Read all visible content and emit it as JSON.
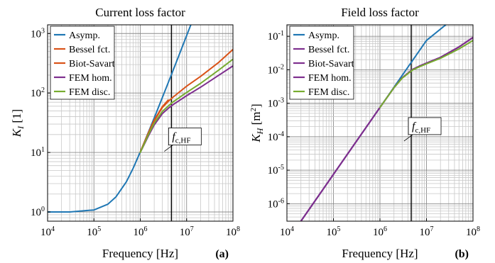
{
  "chart_data": [
    {
      "type": "line",
      "title": "Current loss factor",
      "xlabel": "Frequency [Hz]",
      "ylabel_main": "K",
      "ylabel_sub": "I",
      "ylabel_unit": "[1]",
      "panel_label": "(a)",
      "x_scale": "log",
      "y_scale": "log",
      "xlim": [
        10000,
        100000000
      ],
      "ylim": [
        0.7,
        1400
      ],
      "x_ticks": [
        {
          "v": 10000,
          "base": "10",
          "exp": "4"
        },
        {
          "v": 100000,
          "base": "10",
          "exp": "5"
        },
        {
          "v": 1000000,
          "base": "10",
          "exp": "6"
        },
        {
          "v": 10000000,
          "base": "10",
          "exp": "7"
        },
        {
          "v": 100000000,
          "base": "10",
          "exp": "8"
        }
      ],
      "y_ticks": [
        {
          "v": 1,
          "base": "10",
          "exp": "0"
        },
        {
          "v": 10,
          "base": "10",
          "exp": "1"
        },
        {
          "v": 100,
          "base": "10",
          "exp": "2"
        },
        {
          "v": 1000,
          "base": "10",
          "exp": "3"
        }
      ],
      "grid": true,
      "legend_position": "top-left",
      "vline": {
        "x": 4700000,
        "label_main": "f",
        "label_sub": "c,HF",
        "label_x": 3300000,
        "label_y": 13
      },
      "series": [
        {
          "name": "Asymp.",
          "color": "#1f77b4",
          "x": [
            10000,
            30000,
            100000,
            200000,
            300000,
            500000,
            700000,
            1000000,
            1500000,
            2000000,
            3000000,
            5000000,
            7000000,
            10000000,
            14000000
          ],
          "y": [
            1.0,
            1.0,
            1.08,
            1.35,
            1.8,
            3.2,
            5.4,
            10.2,
            22,
            38,
            84,
            230,
            450,
            920,
            1800
          ]
        },
        {
          "name": "Bessel fct.",
          "color": "#d95319",
          "x": [
            1000000,
            1500000,
            2000000,
            3000000,
            4000000,
            5000000,
            7000000,
            10000000,
            20000000,
            50000000,
            100000000
          ],
          "y": [
            10.2,
            21,
            34,
            57,
            72,
            84,
            104,
            130,
            190,
            330,
            540
          ]
        },
        {
          "name": "Biot-Savart",
          "color": "#d95319",
          "x": [
            1000000,
            1500000,
            2000000,
            3000000,
            4000000
          ],
          "y": [
            10.2,
            21.5,
            35,
            59,
            76
          ]
        },
        {
          "name": "FEM hom.",
          "color": "#7e2f8e",
          "x": [
            1000000,
            1500000,
            2000000,
            3000000,
            4000000,
            5000000,
            7000000,
            10000000,
            20000000,
            50000000,
            100000000
          ],
          "y": [
            10.0,
            19,
            29,
            45,
            55,
            63,
            75,
            90,
            125,
            200,
            285
          ]
        },
        {
          "name": "FEM disc.",
          "color": "#77ac30",
          "x": [
            1000000,
            1500000,
            2000000,
            3000000,
            4000000,
            5000000,
            7000000,
            10000000,
            20000000,
            50000000,
            100000000
          ],
          "y": [
            10.0,
            20,
            31,
            49,
            60,
            70,
            84,
            102,
            145,
            245,
            370
          ]
        }
      ]
    },
    {
      "type": "line",
      "title": "Field loss factor",
      "xlabel": "Frequency [Hz]",
      "ylabel_main": "K",
      "ylabel_sub": "H",
      "ylabel_unit": "[m",
      "ylabel_unit_sup": "2",
      "ylabel_unit_end": "]",
      "panel_label": "(b)",
      "x_scale": "log",
      "y_scale": "log",
      "xlim": [
        10000,
        100000000
      ],
      "ylim": [
        3e-07,
        0.22
      ],
      "x_ticks": [
        {
          "v": 10000,
          "base": "10",
          "exp": "4"
        },
        {
          "v": 100000,
          "base": "10",
          "exp": "5"
        },
        {
          "v": 1000000,
          "base": "10",
          "exp": "6"
        },
        {
          "v": 10000000,
          "base": "10",
          "exp": "7"
        },
        {
          "v": 100000000,
          "base": "10",
          "exp": "8"
        }
      ],
      "y_ticks": [
        {
          "v": 1e-06,
          "base": "10",
          "exp": "-6"
        },
        {
          "v": 1e-05,
          "base": "10",
          "exp": "-5"
        },
        {
          "v": 0.0001,
          "base": "10",
          "exp": "-4"
        },
        {
          "v": 0.001,
          "base": "10",
          "exp": "-3"
        },
        {
          "v": 0.01,
          "base": "10",
          "exp": "-2"
        },
        {
          "v": 0.1,
          "base": "10",
          "exp": "-1"
        }
      ],
      "grid": true,
      "legend_position": "top-right",
      "vline": {
        "x": 4700000,
        "label_main": "f",
        "label_sub": "c,HF",
        "label_x": 3300000,
        "label_y": 0.00011
      },
      "series": [
        {
          "name": "Asymp.",
          "color": "#1f77b4",
          "x": [
            20000,
            100000,
            1000000,
            10000000,
            26000000
          ],
          "y": [
            3e-07,
            7.5e-06,
            0.00075,
            0.075,
            0.22
          ]
        },
        {
          "name": "Bessel fct.",
          "color": "#7e2f8e",
          "x": [
            20000,
            100000,
            1000000,
            2000000,
            3000000,
            5000000,
            7000000,
            10000000,
            20000000,
            50000000,
            100000000
          ],
          "y": [
            3e-07,
            7.5e-06,
            0.00075,
            0.0029,
            0.0057,
            0.0102,
            0.0128,
            0.0158,
            0.0235,
            0.048,
            0.092
          ]
        },
        {
          "name": "Biot-Savart",
          "color": "#7e2f8e",
          "x": [
            20000,
            100000,
            1000000,
            2000000,
            3000000,
            5000000,
            7000000,
            10000000,
            20000000,
            50000000,
            100000000
          ],
          "y": [
            3e-07,
            7.5e-06,
            0.00075,
            0.0029,
            0.0057,
            0.0102,
            0.0128,
            0.0158,
            0.0235,
            0.048,
            0.092
          ]
        },
        {
          "name": "FEM hom.",
          "color": "#7e2f8e",
          "x": [
            20000,
            100000,
            1000000,
            2000000,
            3000000,
            5000000,
            7000000,
            10000000,
            20000000,
            50000000,
            100000000
          ],
          "y": [
            3e-07,
            7.5e-06,
            0.00075,
            0.0029,
            0.0057,
            0.0102,
            0.0128,
            0.0158,
            0.0235,
            0.048,
            0.092
          ]
        },
        {
          "name": "FEM disc.",
          "color": "#77ac30",
          "x": [
            1000000,
            2000000,
            3000000,
            5000000,
            7000000,
            10000000,
            20000000,
            50000000,
            100000000
          ],
          "y": [
            0.00075,
            0.0029,
            0.0056,
            0.0098,
            0.0122,
            0.015,
            0.022,
            0.042,
            0.075
          ]
        }
      ]
    }
  ]
}
